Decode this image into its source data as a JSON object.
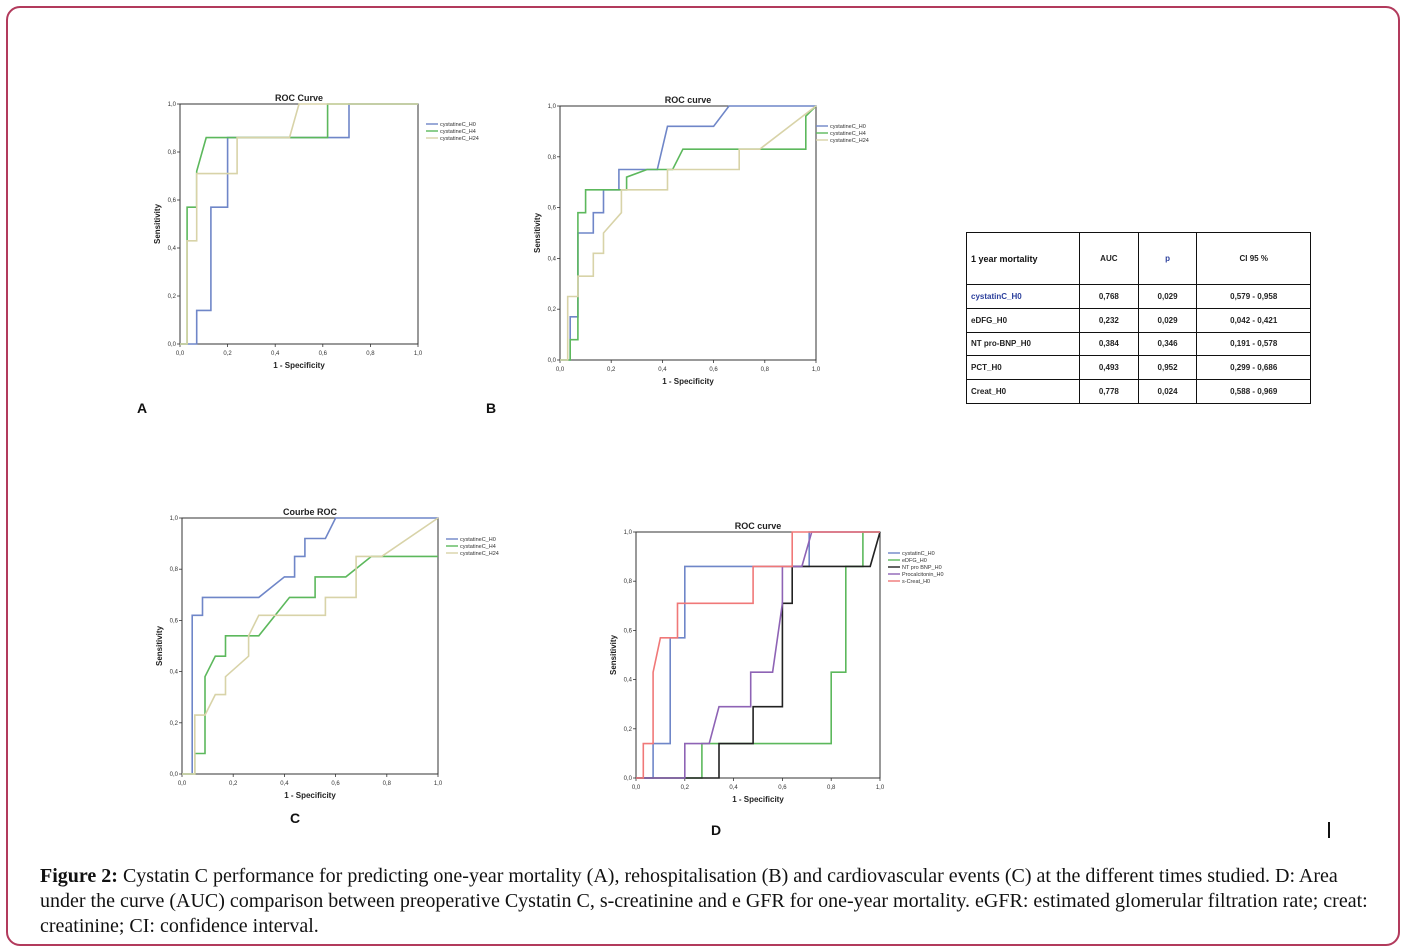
{
  "panels": {
    "A": {
      "letter": "A"
    },
    "B": {
      "letter": "B"
    },
    "C": {
      "letter": "C"
    },
    "D": {
      "letter": "D"
    }
  },
  "caption": {
    "label": "Figure 2:",
    "text": " Cystatin C performance for predicting one-year mortality (A), rehospitalisation (B) and cardiovascular events (C) at the different times studied. D: Area under the curve (AUC) comparison between preoperative Cystatin C, s-creatinine and e GFR for one-year mortality.  eGFR: estimated glomerular filtration rate; creat: creatinine; CI: confidence interval."
  },
  "table": {
    "headers": [
      "1 year mortality",
      "AUC",
      "p",
      "CI 95 %"
    ],
    "rows": [
      [
        "cystatinC_H0",
        "0,768",
        "0,029",
        "0,579 - 0,958"
      ],
      [
        "eDFG_H0",
        "0,232",
        "0,029",
        "0,042 - 0,421"
      ],
      [
        "NT pro-BNP_H0",
        "0,384",
        "0,346",
        "0,191 - 0,578"
      ],
      [
        "PCT_H0",
        "0,493",
        "0,952",
        "0,299 - 0,686"
      ],
      [
        "Creat_H0",
        "0,778",
        "0,024",
        "0,588 - 0,969"
      ]
    ]
  },
  "chart_data": [
    {
      "type": "line",
      "title": "ROC Curve",
      "xlabel": "1 - Specificity",
      "ylabel": "Sensitivity",
      "xlim": [
        0,
        1
      ],
      "ylim": [
        0,
        1
      ],
      "ticks": [
        "0,0",
        "0,2",
        "0,4",
        "0,6",
        "0,8",
        "1,0"
      ],
      "legend_position": "top-right",
      "series": [
        {
          "name": "cystatineC_H0",
          "color": "#6f86c8",
          "points": [
            [
              0,
              0
            ],
            [
              0.07,
              0
            ],
            [
              0.07,
              0.14
            ],
            [
              0.13,
              0.14
            ],
            [
              0.13,
              0.57
            ],
            [
              0.2,
              0.57
            ],
            [
              0.2,
              0.86
            ],
            [
              0.64,
              0.86
            ],
            [
              0.71,
              0.86
            ],
            [
              0.71,
              1
            ],
            [
              1,
              1
            ]
          ]
        },
        {
          "name": "cystatineC_H4",
          "color": "#5cb85c",
          "points": [
            [
              0,
              0
            ],
            [
              0.03,
              0
            ],
            [
              0.03,
              0.43
            ],
            [
              0.03,
              0.57
            ],
            [
              0.07,
              0.57
            ],
            [
              0.07,
              0.71
            ],
            [
              0.07,
              0.72
            ],
            [
              0.11,
              0.86
            ],
            [
              0.62,
              0.86
            ],
            [
              0.62,
              1
            ],
            [
              1,
              1
            ]
          ]
        },
        {
          "name": "cystatineC_H24",
          "color": "#d8d3a8",
          "points": [
            [
              0,
              0
            ],
            [
              0.03,
              0
            ],
            [
              0.03,
              0.43
            ],
            [
              0.07,
              0.43
            ],
            [
              0.07,
              0.71
            ],
            [
              0.24,
              0.71
            ],
            [
              0.24,
              0.86
            ],
            [
              0.46,
              0.86
            ],
            [
              0.5,
              1
            ],
            [
              1,
              1
            ]
          ]
        }
      ]
    },
    {
      "type": "line",
      "title": "ROC curve",
      "xlabel": "1 - Specificity",
      "ylabel": "Sensitivity",
      "xlim": [
        0,
        1
      ],
      "ylim": [
        0,
        1
      ],
      "ticks": [
        "0,0",
        "0,2",
        "0,4",
        "0,6",
        "0,8",
        "1,0"
      ],
      "legend_position": "top-right",
      "series": [
        {
          "name": "cystatineC_H0",
          "color": "#6f86c8",
          "points": [
            [
              0,
              0
            ],
            [
              0.04,
              0
            ],
            [
              0.04,
              0.17
            ],
            [
              0.07,
              0.17
            ],
            [
              0.07,
              0.5
            ],
            [
              0.13,
              0.5
            ],
            [
              0.13,
              0.58
            ],
            [
              0.17,
              0.58
            ],
            [
              0.17,
              0.67
            ],
            [
              0.23,
              0.67
            ],
            [
              0.23,
              0.75
            ],
            [
              0.38,
              0.75
            ],
            [
              0.42,
              0.92
            ],
            [
              0.6,
              0.92
            ],
            [
              0.66,
              1
            ],
            [
              1,
              1
            ]
          ]
        },
        {
          "name": "cystatineC_H4",
          "color": "#5cb85c",
          "points": [
            [
              0,
              0
            ],
            [
              0.04,
              0
            ],
            [
              0.04,
              0.08
            ],
            [
              0.07,
              0.08
            ],
            [
              0.07,
              0.58
            ],
            [
              0.1,
              0.58
            ],
            [
              0.1,
              0.67
            ],
            [
              0.26,
              0.67
            ],
            [
              0.26,
              0.72
            ],
            [
              0.34,
              0.75
            ],
            [
              0.44,
              0.75
            ],
            [
              0.48,
              0.83
            ],
            [
              0.96,
              0.83
            ],
            [
              0.96,
              0.96
            ],
            [
              1,
              1
            ]
          ]
        },
        {
          "name": "cystatineC_H24",
          "color": "#d8d3a8",
          "points": [
            [
              0,
              0
            ],
            [
              0.03,
              0
            ],
            [
              0.03,
              0.25
            ],
            [
              0.07,
              0.25
            ],
            [
              0.07,
              0.33
            ],
            [
              0.13,
              0.33
            ],
            [
              0.13,
              0.42
            ],
            [
              0.17,
              0.42
            ],
            [
              0.17,
              0.5
            ],
            [
              0.24,
              0.58
            ],
            [
              0.24,
              0.67
            ],
            [
              0.42,
              0.67
            ],
            [
              0.42,
              0.75
            ],
            [
              0.7,
              0.75
            ],
            [
              0.7,
              0.83
            ],
            [
              0.78,
              0.83
            ],
            [
              1,
              1
            ]
          ]
        }
      ]
    },
    {
      "type": "line",
      "title": "Courbe ROC",
      "xlabel": "1 - Specificity",
      "ylabel": "Sensitivity",
      "xlim": [
        0,
        1
      ],
      "ylim": [
        0,
        1
      ],
      "ticks": [
        "0,0",
        "0,2",
        "0,4",
        "0,6",
        "0,8",
        "1,0"
      ],
      "legend_position": "top-right",
      "series": [
        {
          "name": "cystatineC_H0",
          "color": "#6f86c8",
          "points": [
            [
              0,
              0
            ],
            [
              0.04,
              0
            ],
            [
              0.04,
              0.62
            ],
            [
              0.08,
              0.62
            ],
            [
              0.08,
              0.69
            ],
            [
              0.3,
              0.69
            ],
            [
              0.35,
              0.73
            ],
            [
              0.4,
              0.77
            ],
            [
              0.44,
              0.77
            ],
            [
              0.44,
              0.85
            ],
            [
              0.48,
              0.85
            ],
            [
              0.48,
              0.92
            ],
            [
              0.56,
              0.92
            ],
            [
              0.6,
              1
            ],
            [
              1,
              1
            ]
          ]
        },
        {
          "name": "cystatineC_H4",
          "color": "#5cb85c",
          "points": [
            [
              0,
              0
            ],
            [
              0.05,
              0
            ],
            [
              0.05,
              0.08
            ],
            [
              0.09,
              0.08
            ],
            [
              0.09,
              0.38
            ],
            [
              0.13,
              0.46
            ],
            [
              0.17,
              0.46
            ],
            [
              0.17,
              0.54
            ],
            [
              0.3,
              0.54
            ],
            [
              0.42,
              0.69
            ],
            [
              0.52,
              0.69
            ],
            [
              0.52,
              0.77
            ],
            [
              0.64,
              0.77
            ],
            [
              0.74,
              0.85
            ],
            [
              1,
              0.85
            ]
          ]
        },
        {
          "name": "cystatineC_H24",
          "color": "#d8d3a8",
          "points": [
            [
              0,
              0
            ],
            [
              0.05,
              0
            ],
            [
              0.05,
              0.23
            ],
            [
              0.09,
              0.23
            ],
            [
              0.13,
              0.31
            ],
            [
              0.17,
              0.31
            ],
            [
              0.17,
              0.38
            ],
            [
              0.26,
              0.46
            ],
            [
              0.26,
              0.54
            ],
            [
              0.3,
              0.62
            ],
            [
              0.56,
              0.62
            ],
            [
              0.56,
              0.69
            ],
            [
              0.68,
              0.69
            ],
            [
              0.68,
              0.85
            ],
            [
              0.78,
              0.85
            ],
            [
              1,
              1
            ]
          ]
        }
      ]
    },
    {
      "type": "line",
      "title": "ROC curve",
      "xlabel": "1 - Specificity",
      "ylabel": "Sensitivity",
      "xlim": [
        0,
        1
      ],
      "ylim": [
        0,
        1
      ],
      "ticks": [
        "0,0",
        "0,2",
        "0,4",
        "0,6",
        "0,8",
        "1,0"
      ],
      "legend_position": "top-right",
      "series": [
        {
          "name": "cystatinC_H0",
          "color": "#6f86c8",
          "points": [
            [
              0,
              0
            ],
            [
              0.07,
              0
            ],
            [
              0.07,
              0.14
            ],
            [
              0.14,
              0.14
            ],
            [
              0.14,
              0.57
            ],
            [
              0.2,
              0.57
            ],
            [
              0.2,
              0.86
            ],
            [
              0.64,
              0.86
            ],
            [
              0.71,
              0.86
            ],
            [
              0.71,
              1
            ],
            [
              1,
              1
            ]
          ]
        },
        {
          "name": "eDFG_H0",
          "color": "#5cb85c",
          "points": [
            [
              0,
              0
            ],
            [
              0.27,
              0
            ],
            [
              0.27,
              0.14
            ],
            [
              0.8,
              0.14
            ],
            [
              0.8,
              0.43
            ],
            [
              0.86,
              0.43
            ],
            [
              0.86,
              0.86
            ],
            [
              0.93,
              0.86
            ],
            [
              0.93,
              1
            ],
            [
              1,
              1
            ]
          ]
        },
        {
          "name": "NT pro BNP_H0",
          "color": "#222222",
          "points": [
            [
              0,
              0
            ],
            [
              0.34,
              0
            ],
            [
              0.34,
              0.14
            ],
            [
              0.48,
              0.14
            ],
            [
              0.48,
              0.29
            ],
            [
              0.6,
              0.29
            ],
            [
              0.6,
              0.71
            ],
            [
              0.64,
              0.71
            ],
            [
              0.64,
              0.86
            ],
            [
              0.96,
              0.86
            ],
            [
              1,
              1
            ]
          ]
        },
        {
          "name": "Procalcitonin_H0",
          "color": "#8e63b5",
          "points": [
            [
              0,
              0
            ],
            [
              0.2,
              0
            ],
            [
              0.2,
              0.14
            ],
            [
              0.3,
              0.14
            ],
            [
              0.34,
              0.29
            ],
            [
              0.47,
              0.29
            ],
            [
              0.47,
              0.43
            ],
            [
              0.56,
              0.43
            ],
            [
              0.6,
              0.71
            ],
            [
              0.6,
              0.86
            ],
            [
              0.68,
              0.86
            ],
            [
              0.72,
              1
            ],
            [
              1,
              1
            ]
          ]
        },
        {
          "name": "s-Creat_H0",
          "color": "#f07878",
          "points": [
            [
              0,
              0
            ],
            [
              0.03,
              0
            ],
            [
              0.03,
              0.14
            ],
            [
              0.07,
              0.14
            ],
            [
              0.07,
              0.43
            ],
            [
              0.1,
              0.57
            ],
            [
              0.17,
              0.57
            ],
            [
              0.17,
              0.71
            ],
            [
              0.3,
              0.71
            ],
            [
              0.48,
              0.71
            ],
            [
              0.48,
              0.86
            ],
            [
              0.64,
              0.86
            ],
            [
              0.64,
              1
            ],
            [
              1,
              1
            ]
          ]
        }
      ]
    }
  ]
}
